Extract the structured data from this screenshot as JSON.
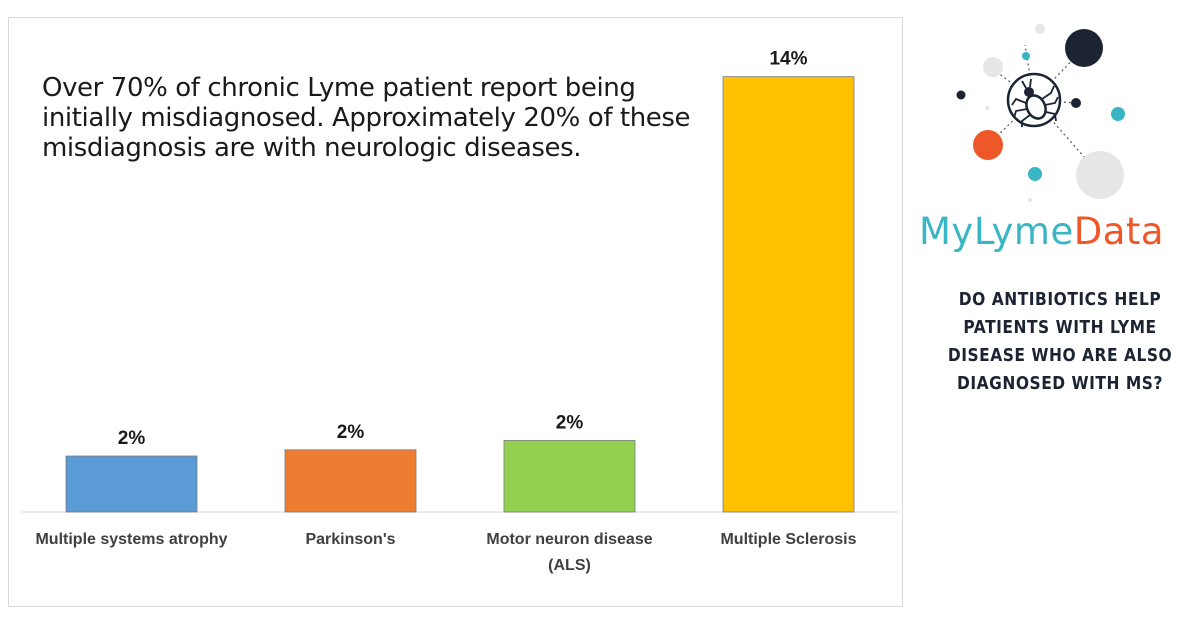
{
  "chart_data": {
    "type": "bar",
    "title": "Over 70% of chronic Lyme patient report being initially misdiagnosed.  Approximately 20% of these misdiagnosis are with neurologic diseases.",
    "categories": [
      [
        "Multiple systems atrophy"
      ],
      [
        "Parkinson's"
      ],
      [
        "Motor neuron disease",
        "(ALS)"
      ],
      [
        "Multiple Sclerosis"
      ]
    ],
    "values": [
      1.8,
      2.0,
      2.3,
      14
    ],
    "data_labels": [
      "2%",
      "2%",
      "2%",
      "14%"
    ],
    "colors": [
      "#5b9bd5",
      "#ed7d31",
      "#92d050",
      "#ffc000"
    ],
    "ylim": [
      0,
      15.5
    ],
    "xlabel": "",
    "ylabel": "",
    "grid": false,
    "legend": "none"
  },
  "brand": {
    "part1": "MyLyme",
    "part2": "Data"
  },
  "side_question": "DO ANTIBIOTICS HELP PATIENTS WITH LYME DISEASE WHO ARE ALSO DIAGNOSED WITH MS?",
  "logo": {
    "icon": "tick-icon",
    "accent_colors": [
      "#1c2333",
      "#39b5c4",
      "#ee5829",
      "#e6e6e6"
    ]
  }
}
